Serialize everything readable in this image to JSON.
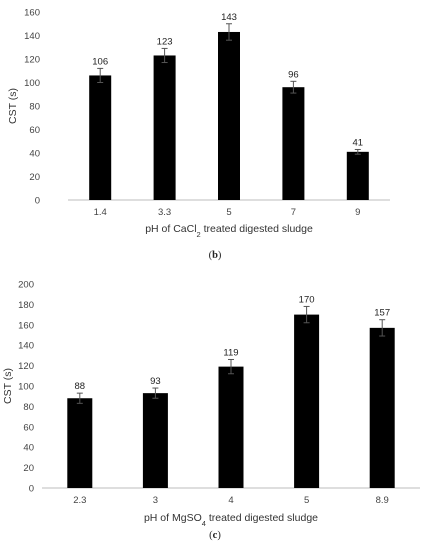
{
  "panels": [
    {
      "label_open": "(",
      "label_letter": "b",
      "label_close": ")"
    },
    {
      "label_open": "(",
      "label_letter": "c",
      "label_close": ")"
    }
  ],
  "chart_data": [
    {
      "type": "bar",
      "categories": [
        "1.4",
        "3.3",
        "5",
        "7",
        "9"
      ],
      "values": [
        106,
        123,
        143,
        96,
        41
      ],
      "error": [
        6,
        6,
        7,
        5,
        2
      ],
      "data_labels": [
        "106",
        "123",
        "143",
        "96",
        "41"
      ],
      "ylabel": "CST (s)",
      "xlabel_parts": [
        "pH of CaCl",
        "2",
        " treated digested sludge"
      ],
      "ylim": [
        0,
        160
      ],
      "yticks": [
        0,
        20,
        40,
        60,
        80,
        100,
        120,
        140,
        160
      ],
      "grid": false,
      "bar_color": "#000000"
    },
    {
      "type": "bar",
      "categories": [
        "2.3",
        "3",
        "4",
        "5",
        "8.9"
      ],
      "values": [
        88,
        93,
        119,
        170,
        157
      ],
      "error": [
        5,
        5,
        7,
        8,
        8
      ],
      "data_labels": [
        "88",
        "93",
        "119",
        "170",
        "157"
      ],
      "ylabel": "CST (s)",
      "xlabel_parts": [
        "pH of MgSO",
        "4",
        " treated digested sludge"
      ],
      "ylim": [
        0,
        200
      ],
      "yticks": [
        0,
        20,
        40,
        60,
        80,
        100,
        120,
        140,
        160,
        180,
        200
      ],
      "grid": false,
      "bar_color": "#000000"
    }
  ]
}
